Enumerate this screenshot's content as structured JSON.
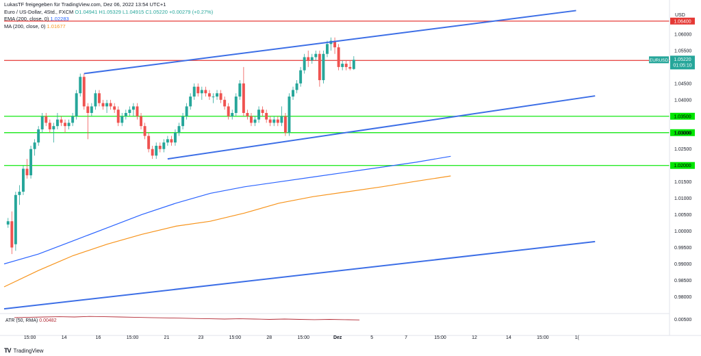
{
  "header": {
    "published": "LukasTF freigegeben für TradingView.com, Dez 06, 2022 13:54 UTC+1",
    "symbol_line": "Euro / US-Dollar, 4Std., FXCM",
    "ohlc": "O1.04941  H1.05329  L1.04915  C1.05220  +0.00279 (+0.27%)",
    "ema_label": "EMA (200, close, 0)",
    "ema_value": "1.02283",
    "ma_label": "MA (200, close, 0)",
    "ma_value": "1.01677"
  },
  "atr": {
    "label": "ATR (50, RMA)",
    "value": "0.00482"
  },
  "watermark": {
    "logo": "TV",
    "text": "TradingView"
  },
  "chart_data": {
    "type": "candlestick",
    "currency": "USD",
    "y_range": [
      0.9755,
      1.0675
    ],
    "y_ticks": [
      "1.06000",
      "1.05500",
      "1.04500",
      "1.04000",
      "1.03000",
      "1.02500",
      "1.01500",
      "1.01000",
      "1.00500",
      "1.00000",
      "0.99500",
      "0.99000",
      "0.98500",
      "0.98000"
    ],
    "y_tick_values": [
      1.06,
      1.055,
      1.045,
      1.04,
      1.03,
      1.025,
      1.015,
      1.01,
      1.005,
      1.0,
      0.995,
      0.99,
      0.985,
      0.98
    ],
    "x_ticks": [
      "15:00",
      "14",
      "16",
      "15:00",
      "21",
      "23",
      "15:00",
      "28",
      "15:00",
      "Dez",
      "5",
      "7",
      "15:00",
      "12",
      "14",
      "15:00",
      "1("
    ],
    "x_tick_index": [
      3,
      12,
      21,
      30,
      39,
      48,
      57,
      66,
      75,
      84,
      93,
      102,
      111,
      120,
      129,
      138,
      147
    ],
    "ohlc_bars": [
      [
        1.002,
        1.004,
        1.001,
        1.003
      ],
      [
        1.003,
        1.006,
        0.993,
        0.995
      ],
      [
        0.996,
        1.012,
        0.994,
        1.011
      ],
      [
        1.011,
        1.014,
        1.008,
        1.012
      ],
      [
        1.012,
        1.02,
        1.011,
        1.019
      ],
      [
        1.019,
        1.022,
        1.016,
        1.017
      ],
      [
        1.017,
        1.026,
        1.016,
        1.025
      ],
      [
        1.025,
        1.028,
        1.023,
        1.027
      ],
      [
        1.027,
        1.032,
        1.026,
        1.031
      ],
      [
        1.031,
        1.036,
        1.03,
        1.035
      ],
      [
        1.035,
        1.036,
        1.032,
        1.033
      ],
      [
        1.033,
        1.034,
        1.03,
        1.031
      ],
      [
        1.031,
        1.033,
        1.027,
        1.032
      ],
      [
        1.032,
        1.036,
        1.031,
        1.034
      ],
      [
        1.034,
        1.035,
        1.032,
        1.033
      ],
      [
        1.033,
        1.034,
        1.03,
        1.032
      ],
      [
        1.032,
        1.034,
        1.031,
        1.033
      ],
      [
        1.033,
        1.036,
        1.032,
        1.035
      ],
      [
        1.035,
        1.043,
        1.034,
        1.042
      ],
      [
        1.042,
        1.048,
        1.041,
        1.047
      ],
      [
        1.047,
        1.048,
        1.037,
        1.038
      ],
      [
        1.038,
        1.039,
        1.028,
        1.036
      ],
      [
        1.036,
        1.039,
        1.035,
        1.038
      ],
      [
        1.038,
        1.043,
        1.037,
        1.042
      ],
      [
        1.042,
        1.043,
        1.038,
        1.039
      ],
      [
        1.039,
        1.04,
        1.037,
        1.038
      ],
      [
        1.038,
        1.04,
        1.036,
        1.039
      ],
      [
        1.039,
        1.04,
        1.037,
        1.038
      ],
      [
        1.038,
        1.039,
        1.036,
        1.037
      ],
      [
        1.037,
        1.038,
        1.032,
        1.033
      ],
      [
        1.033,
        1.036,
        1.032,
        1.035
      ],
      [
        1.035,
        1.037,
        1.034,
        1.036
      ],
      [
        1.036,
        1.038,
        1.035,
        1.037
      ],
      [
        1.037,
        1.039,
        1.035,
        1.038
      ],
      [
        1.038,
        1.039,
        1.034,
        1.035
      ],
      [
        1.035,
        1.036,
        1.031,
        1.032
      ],
      [
        1.032,
        1.033,
        1.028,
        1.029
      ],
      [
        1.029,
        1.03,
        1.024,
        1.025
      ],
      [
        1.025,
        1.026,
        1.022,
        1.023
      ],
      [
        1.023,
        1.027,
        1.022,
        1.026
      ],
      [
        1.026,
        1.027,
        1.024,
        1.025
      ],
      [
        1.025,
        1.028,
        1.024,
        1.027
      ],
      [
        1.027,
        1.029,
        1.026,
        1.028
      ],
      [
        1.028,
        1.029,
        1.026,
        1.027
      ],
      [
        1.027,
        1.031,
        1.026,
        1.03
      ],
      [
        1.03,
        1.033,
        1.029,
        1.032
      ],
      [
        1.032,
        1.036,
        1.031,
        1.035
      ],
      [
        1.035,
        1.039,
        1.034,
        1.038
      ],
      [
        1.038,
        1.042,
        1.037,
        1.041
      ],
      [
        1.041,
        1.045,
        1.04,
        1.044
      ],
      [
        1.044,
        1.045,
        1.041,
        1.042
      ],
      [
        1.042,
        1.044,
        1.04,
        1.043
      ],
      [
        1.043,
        1.044,
        1.041,
        1.042
      ],
      [
        1.042,
        1.043,
        1.04,
        1.041
      ],
      [
        1.041,
        1.042,
        1.039,
        1.041
      ],
      [
        1.041,
        1.043,
        1.04,
        1.042
      ],
      [
        1.042,
        1.043,
        1.039,
        1.04
      ],
      [
        1.04,
        1.041,
        1.037,
        1.038
      ],
      [
        1.038,
        1.039,
        1.034,
        1.035
      ],
      [
        1.035,
        1.037,
        1.034,
        1.036
      ],
      [
        1.036,
        1.042,
        1.035,
        1.041
      ],
      [
        1.041,
        1.046,
        1.04,
        1.045
      ],
      [
        1.045,
        1.05,
        1.035,
        1.036
      ],
      [
        1.036,
        1.037,
        1.034,
        1.035
      ],
      [
        1.035,
        1.036,
        1.032,
        1.033
      ],
      [
        1.033,
        1.035,
        1.032,
        1.034
      ],
      [
        1.034,
        1.038,
        1.033,
        1.037
      ],
      [
        1.037,
        1.038,
        1.035,
        1.036
      ],
      [
        1.036,
        1.037,
        1.033,
        1.034
      ],
      [
        1.034,
        1.035,
        1.032,
        1.033
      ],
      [
        1.033,
        1.035,
        1.032,
        1.034
      ],
      [
        1.034,
        1.035,
        1.032,
        1.033
      ],
      [
        1.033,
        1.038,
        1.032,
        1.035
      ],
      [
        1.035,
        1.036,
        1.029,
        1.03
      ],
      [
        1.03,
        1.042,
        1.029,
        1.041
      ],
      [
        1.041,
        1.044,
        1.04,
        1.043
      ],
      [
        1.043,
        1.046,
        1.042,
        1.045
      ],
      [
        1.045,
        1.05,
        1.044,
        1.049
      ],
      [
        1.049,
        1.054,
        1.048,
        1.053
      ],
      [
        1.053,
        1.055,
        1.05,
        1.052
      ],
      [
        1.052,
        1.054,
        1.051,
        1.053
      ],
      [
        1.053,
        1.055,
        1.052,
        1.054
      ],
      [
        1.054,
        1.055,
        1.044,
        1.046
      ],
      [
        1.046,
        1.055,
        1.045,
        1.054
      ],
      [
        1.054,
        1.058,
        1.053,
        1.057
      ],
      [
        1.057,
        1.059,
        1.055,
        1.058
      ],
      [
        1.058,
        1.059,
        1.054,
        1.056
      ],
      [
        1.056,
        1.057,
        1.049,
        1.05
      ],
      [
        1.05,
        1.052,
        1.049,
        1.051
      ],
      [
        1.051,
        1.052,
        1.049,
        1.05
      ],
      [
        1.05,
        1.052,
        1.049,
        1.0495
      ],
      [
        1.0494,
        1.0533,
        1.0491,
        1.0522
      ]
    ],
    "ema_200": [
      0.99,
      0.993,
      0.997,
      1.001,
      1.005,
      1.0085,
      1.0115,
      1.0135,
      1.015,
      1.0165,
      1.018,
      1.0195,
      1.021,
      1.0228
    ],
    "ma_200": [
      0.983,
      0.988,
      0.9925,
      0.996,
      0.999,
      1.0015,
      1.003,
      1.0055,
      1.0085,
      1.0105,
      1.012,
      1.0135,
      1.0152,
      1.0168
    ],
    "horizontal_lines": [
      {
        "price": 1.064,
        "label": "1.06400",
        "color": "#e53935"
      },
      {
        "price": 1.052,
        "label": "1.05200",
        "color": "#e53935"
      },
      {
        "price": 1.035,
        "label": "1.03500",
        "color": "#00e600"
      },
      {
        "price": 1.03,
        "label": "1.03000",
        "color": "#00e600"
      },
      {
        "price": 1.02,
        "label": "1.02000",
        "color": "#00e600"
      }
    ],
    "trend_lines": [
      {
        "from": {
          "bar": 20,
          "price": 1.048
        },
        "to": {
          "bar": 150,
          "price": 1.0672
        }
      },
      {
        "from": {
          "bar": 42,
          "price": 1.022
        },
        "to": {
          "bar": 155,
          "price": 1.0412
        }
      },
      {
        "from": {
          "bar": -1,
          "price": 0.9763
        },
        "to": {
          "bar": 155,
          "price": 0.9968
        }
      }
    ],
    "price_tags": {
      "symbol": "EURUSD",
      "last_price": "1.05220",
      "countdown": "01:05:10",
      "last_price_value": 1.0522
    },
    "colors": {
      "up": "#26a69a",
      "down": "#ef5350",
      "ema": "#2962ff",
      "ma": "#f7931a",
      "trend": "#3c6ee6",
      "atr": "#b22833"
    },
    "atr_values": [
      0.0056,
      0.0057,
      0.0058,
      0.0059,
      0.0058,
      0.006,
      0.0059,
      0.0058,
      0.0057,
      0.0056,
      0.0055,
      0.0054,
      0.0053,
      0.0052,
      0.0051,
      0.0052,
      0.0051,
      0.005,
      0.0051,
      0.005,
      0.0049,
      0.005,
      0.0049,
      0.0048
    ]
  }
}
